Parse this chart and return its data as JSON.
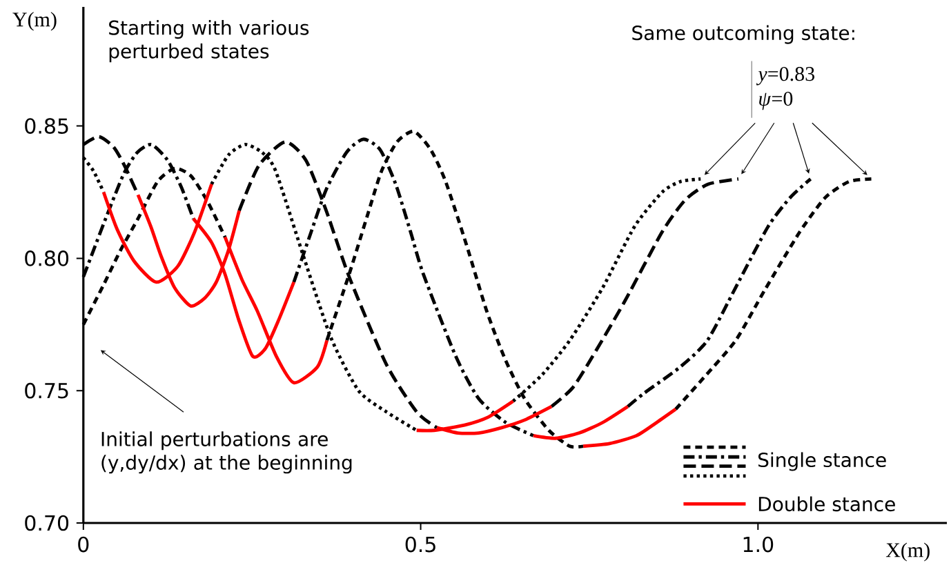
{
  "chart_data": {
    "type": "line",
    "xlabel": "X(m)",
    "ylabel": "Y(m)",
    "xlim": [
      0,
      1.28
    ],
    "ylim": [
      0.7,
      0.895
    ],
    "xticks": [
      0,
      0.5,
      {
        "value": 1.0,
        "label": "1.0"
      }
    ],
    "yticks": [
      {
        "value": 0.7,
        "label": "0.70"
      },
      {
        "value": 0.75,
        "label": "0.75"
      },
      {
        "value": 0.8,
        "label": "0.80"
      },
      {
        "value": 0.85,
        "label": "0.85"
      }
    ],
    "grid": false,
    "legend": "bottom right",
    "annotations": [
      "Starting with various perturbed states",
      "Same outcoming state:",
      "*y*=0.83",
      "*ψ*=0",
      "Initial perturbations are (y,dy/dx) at the beginning"
    ],
    "series": [
      {
        "name": "Single stance",
        "color": "#000000",
        "line_style": "densely dashed",
        "x": [
          0,
          0.03,
          0.055,
          0.081,
          0.11,
          0.136,
          0.16,
          0.185,
          0.21,
          null,
          0.361,
          0.394,
          0.422,
          0.442,
          0.465,
          0.49,
          0.515,
          0.537,
          0.568,
          0.598,
          0.625,
          0.654,
          0.69,
          0.721,
          0.741,
          null,
          0.878,
          0.92,
          0.967,
          1.01,
          1.062,
          1.1,
          1.135,
          1.168
        ],
        "values": [
          0.775,
          0.79,
          0.803,
          0.815,
          0.829,
          0.834,
          0.831,
          0.821,
          0.808,
          null,
          0.769,
          0.794,
          0.817,
          0.833,
          0.844,
          0.848,
          0.841,
          0.829,
          0.805,
          0.78,
          0.762,
          0.747,
          0.735,
          0.729,
          0.729,
          null,
          0.743,
          0.755,
          0.769,
          0.788,
          0.81,
          0.823,
          0.829,
          0.83
        ]
      },
      {
        "color": "#000000",
        "line_style": "dashdotted",
        "x": [
          0,
          0.015,
          0.033,
          0.06,
          0.08,
          0.101,
          0.125,
          0.145,
          0.163,
          null,
          0.312,
          0.335,
          0.36,
          0.39,
          0.415,
          0.44,
          0.463,
          0.485,
          0.504,
          0.552,
          0.586,
          0.626,
          0.667,
          null,
          0.807,
          0.831,
          0.885,
          0.925,
          0.967,
          1.015,
          1.048,
          1.078
        ],
        "values": [
          0.793,
          0.803,
          0.815,
          0.832,
          0.84,
          0.843,
          0.837,
          0.827,
          0.815,
          null,
          0.791,
          0.808,
          0.826,
          0.84,
          0.845,
          0.841,
          0.828,
          0.81,
          0.794,
          0.763,
          0.747,
          0.738,
          0.733,
          null,
          0.744,
          0.749,
          0.759,
          0.769,
          0.789,
          0.812,
          0.823,
          0.83
        ]
      },
      {
        "color": "#000000",
        "line_style": "dashed",
        "x": [
          0,
          0.023,
          0.045,
          0.061,
          0.081,
          null,
          0.231,
          0.26,
          0.299,
          0.33,
          0.36,
          0.394,
          0.449,
          0.494,
          0.524,
          null,
          0.694,
          0.725,
          0.755,
          0.803,
          0.858,
          0.892,
          0.926,
          0.971
        ],
        "values": [
          0.843,
          0.846,
          0.842,
          0.835,
          0.824,
          null,
          0.818,
          0.835,
          0.844,
          0.837,
          0.818,
          0.793,
          0.76,
          0.742,
          0.736,
          null,
          0.744,
          0.751,
          0.763,
          0.784,
          0.81,
          0.822,
          0.828,
          0.83
        ]
      },
      {
        "color": "#000000",
        "line_style": "dotted",
        "x": [
          0,
          0.015,
          0.03,
          null,
          0.19,
          0.215,
          0.24,
          0.265,
          0.285,
          0.326,
          0.367,
          0.408,
          0.449,
          0.494,
          null,
          0.637,
          0.68,
          0.721,
          0.77,
          0.817,
          0.858,
          0.885,
          0.915
        ],
        "values": [
          0.838,
          0.833,
          0.825,
          null,
          0.828,
          0.839,
          0.843,
          0.84,
          0.833,
          0.801,
          0.77,
          0.75,
          0.742,
          0.735,
          null,
          0.746,
          0.756,
          0.769,
          0.789,
          0.812,
          0.825,
          0.829,
          0.83
        ]
      },
      {
        "name": "Double stance",
        "color": "#ff0000",
        "line_style": "solid",
        "x": [
          0.03,
          0.05,
          0.075,
          0.108,
          0.14,
          0.165,
          0.19,
          null,
          0.081,
          0.1,
          0.115,
          0.135,
          0.159,
          0.18,
          0.197,
          0.215,
          0.231,
          null,
          0.163,
          0.19,
          0.21,
          0.23,
          0.251,
          0.27,
          0.29,
          0.312,
          null,
          0.21,
          0.235,
          0.258,
          0.286,
          0.312,
          0.347,
          0.361,
          null,
          0.494,
          0.52,
          0.565,
          0.6,
          0.637,
          null,
          0.524,
          0.555,
          0.586,
          0.62,
          0.655,
          0.694,
          null,
          0.667,
          0.7,
          0.735,
          0.77,
          0.807,
          null,
          0.741,
          0.78,
          0.82,
          0.85,
          0.878
        ],
        "values": [
          0.825,
          0.811,
          0.799,
          0.791,
          0.797,
          0.81,
          0.828,
          null,
          0.824,
          0.812,
          0.801,
          0.789,
          0.782,
          0.785,
          0.791,
          0.803,
          0.818,
          null,
          0.815,
          0.806,
          0.794,
          0.777,
          0.763,
          0.766,
          0.777,
          0.791,
          null,
          0.808,
          0.792,
          0.78,
          0.763,
          0.753,
          0.759,
          0.769,
          null,
          0.735,
          0.735,
          0.737,
          0.74,
          0.746,
          null,
          0.736,
          0.734,
          0.734,
          0.736,
          0.739,
          0.744,
          null,
          0.733,
          0.732,
          0.734,
          0.738,
          0.744,
          null,
          0.729,
          0.73,
          0.733,
          0.738,
          0.743
        ]
      }
    ]
  }
}
